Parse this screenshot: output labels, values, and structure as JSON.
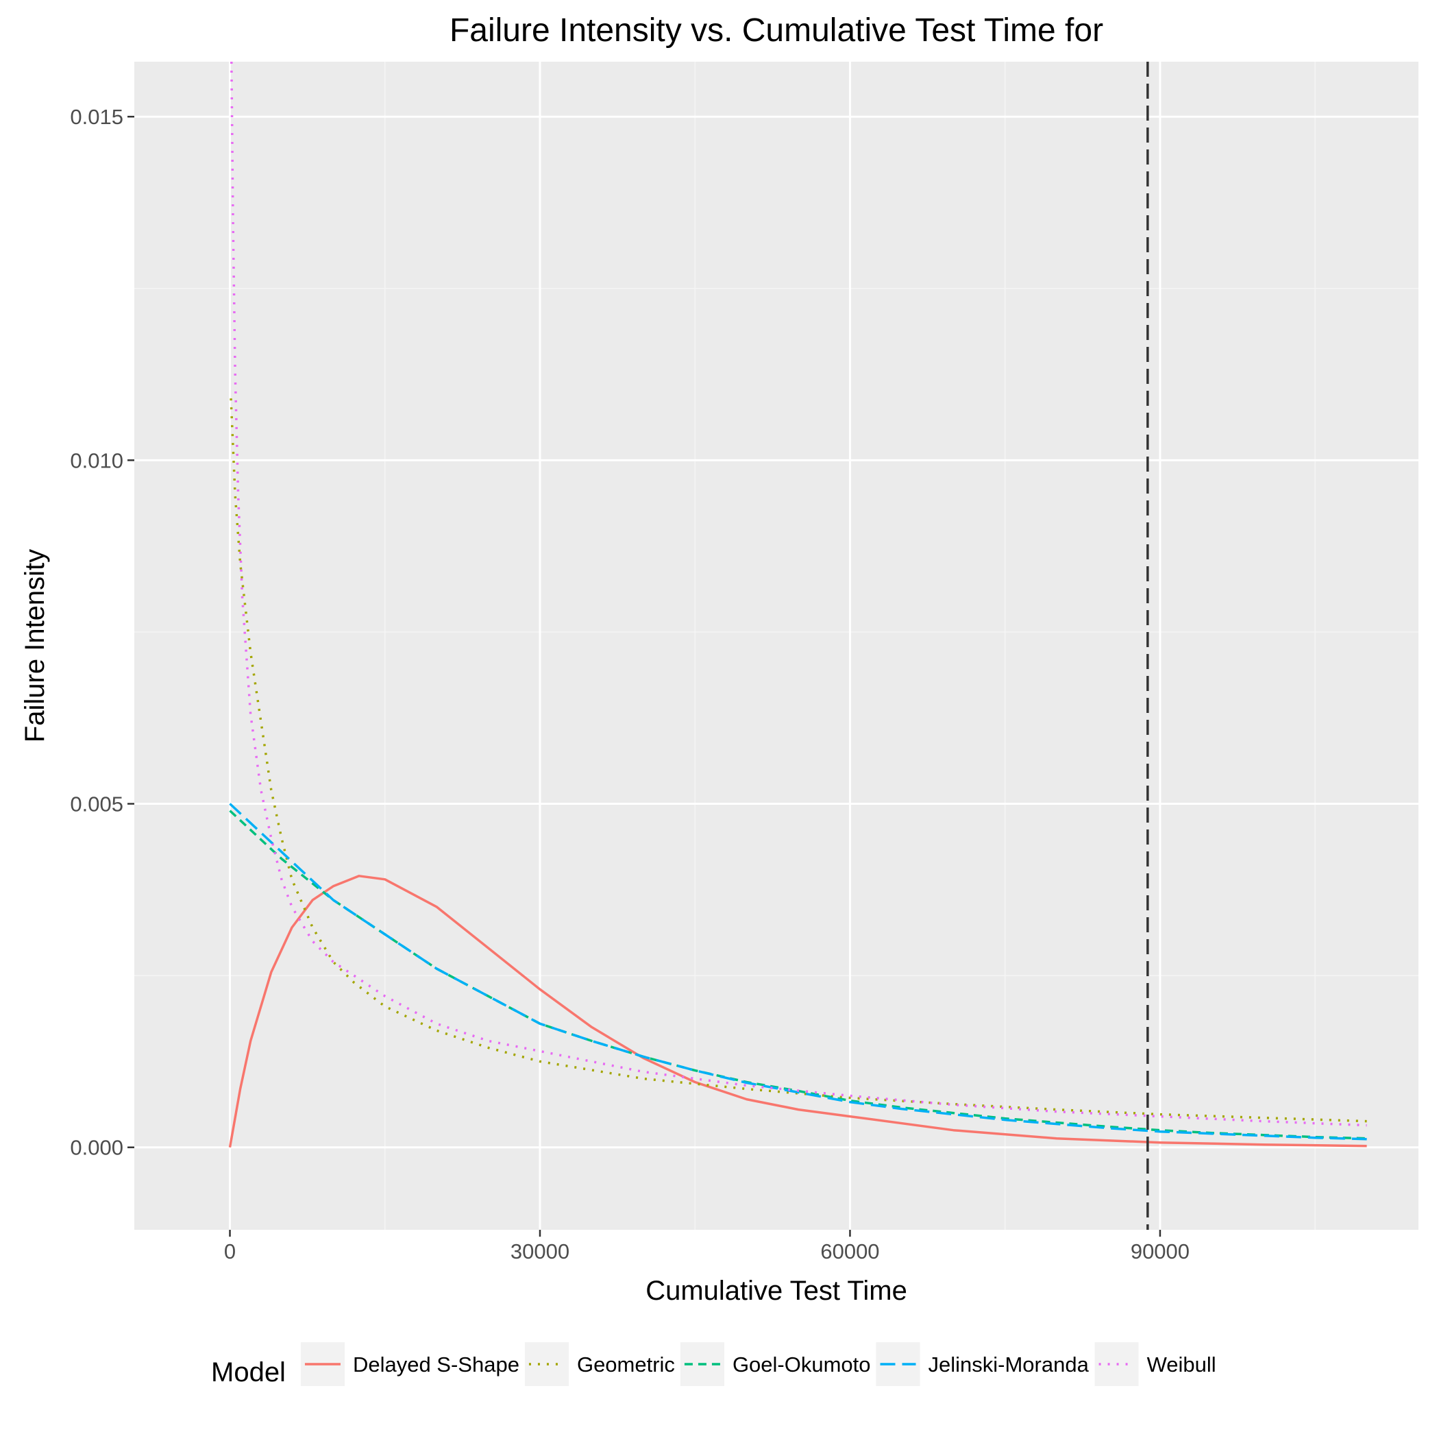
{
  "chart_data": {
    "type": "line",
    "title": "Failure Intensity vs. Cumulative Test Time for",
    "xlabel": "Cumulative Test Time",
    "ylabel": "Failure Intensity",
    "xlim": [
      -9250,
      115000
    ],
    "ylim": [
      -0.0012,
      0.0158
    ],
    "x_ticks": [
      0,
      30000,
      60000,
      90000
    ],
    "x_tick_labels": [
      "0",
      "30000",
      "60000",
      "90000"
    ],
    "y_ticks": [
      0.0,
      0.005,
      0.01,
      0.015
    ],
    "y_tick_labels": [
      "0.000",
      "0.005",
      "0.010",
      "0.015"
    ],
    "grid": true,
    "legend_position": "bottom",
    "legend_title": "Model",
    "reference_line": {
      "x": 88800,
      "style": "dashed",
      "color": "#333333"
    },
    "series": [
      {
        "name": "Delayed S-Shape",
        "color": "#F8766D",
        "linetype": "solid",
        "x": [
          0,
          1000,
          2000,
          4000,
          6000,
          8000,
          10000,
          12500,
          15000,
          20000,
          25000,
          30000,
          35000,
          40000,
          45000,
          50000,
          55000,
          60000,
          70000,
          80000,
          90000,
          100000,
          110000
        ],
        "y": [
          0.0,
          0.00085,
          0.00155,
          0.00255,
          0.0032,
          0.0036,
          0.0038,
          0.00395,
          0.0039,
          0.0035,
          0.0029,
          0.0023,
          0.00175,
          0.0013,
          0.00095,
          0.0007,
          0.00055,
          0.00045,
          0.00025,
          0.00013,
          7e-05,
          4e-05,
          2e-05
        ]
      },
      {
        "name": "Geometric",
        "color": "#A3A500",
        "linetype": "dotted",
        "x": [
          100,
          500,
          1000,
          2000,
          3000,
          4000,
          5000,
          6000,
          8000,
          10000,
          12000,
          15000,
          20000,
          25000,
          30000,
          40000,
          50000,
          60000,
          70000,
          80000,
          90000,
          100000,
          110000
        ],
        "y": [
          0.0109,
          0.0095,
          0.0085,
          0.0072,
          0.0062,
          0.0052,
          0.0045,
          0.0039,
          0.0032,
          0.0027,
          0.0024,
          0.00205,
          0.0017,
          0.00145,
          0.00125,
          0.001,
          0.00085,
          0.00072,
          0.00063,
          0.00055,
          0.00048,
          0.00043,
          0.00038
        ]
      },
      {
        "name": "Goel-Okumoto",
        "color": "#00BF7D",
        "linetype": "dashed",
        "x": [
          0,
          5000,
          10000,
          15000,
          20000,
          25000,
          30000,
          35000,
          40000,
          45000,
          50000,
          55000,
          60000,
          65000,
          70000,
          75000,
          80000,
          85000,
          90000,
          95000,
          100000,
          105000,
          110000
        ],
        "y": [
          0.0049,
          0.0042,
          0.0036,
          0.0031,
          0.0026,
          0.0022,
          0.0018,
          0.00155,
          0.00132,
          0.00112,
          0.00095,
          0.00082,
          0.00068,
          0.00058,
          0.0005,
          0.00042,
          0.00036,
          0.0003,
          0.00025,
          0.00021,
          0.00018,
          0.00015,
          0.00013
        ]
      },
      {
        "name": "Jelinski-Moranda",
        "color": "#00B0F6",
        "linetype": "longdash",
        "x": [
          0,
          5000,
          10000,
          15000,
          20000,
          25000,
          30000,
          35000,
          40000,
          45000,
          50000,
          55000,
          60000,
          65000,
          70000,
          75000,
          80000,
          85000,
          90000,
          95000,
          100000,
          105000,
          110000
        ],
        "y": [
          0.005,
          0.0043,
          0.0036,
          0.0031,
          0.0026,
          0.0022,
          0.0018,
          0.00155,
          0.00132,
          0.00112,
          0.00094,
          0.0008,
          0.00066,
          0.00056,
          0.00048,
          0.0004,
          0.00034,
          0.00028,
          0.00023,
          0.0002,
          0.00017,
          0.00014,
          0.00012
        ]
      },
      {
        "name": "Weibull",
        "color": "#E76BF3",
        "linetype": "dotted",
        "x": [
          150,
          300,
          500,
          800,
          1200,
          2000,
          3000,
          4000,
          5000,
          6000,
          8000,
          10000,
          12000,
          15000,
          20000,
          25000,
          30000,
          40000,
          50000,
          60000,
          70000,
          80000,
          90000,
          100000,
          110000
        ],
        "y": [
          0.0158,
          0.0135,
          0.0113,
          0.0095,
          0.008,
          0.0063,
          0.0052,
          0.0045,
          0.0039,
          0.0035,
          0.003,
          0.0027,
          0.0025,
          0.0022,
          0.0018,
          0.00155,
          0.0014,
          0.0011,
          0.0009,
          0.00075,
          0.00062,
          0.00052,
          0.00045,
          0.00038,
          0.00032
        ]
      }
    ]
  }
}
